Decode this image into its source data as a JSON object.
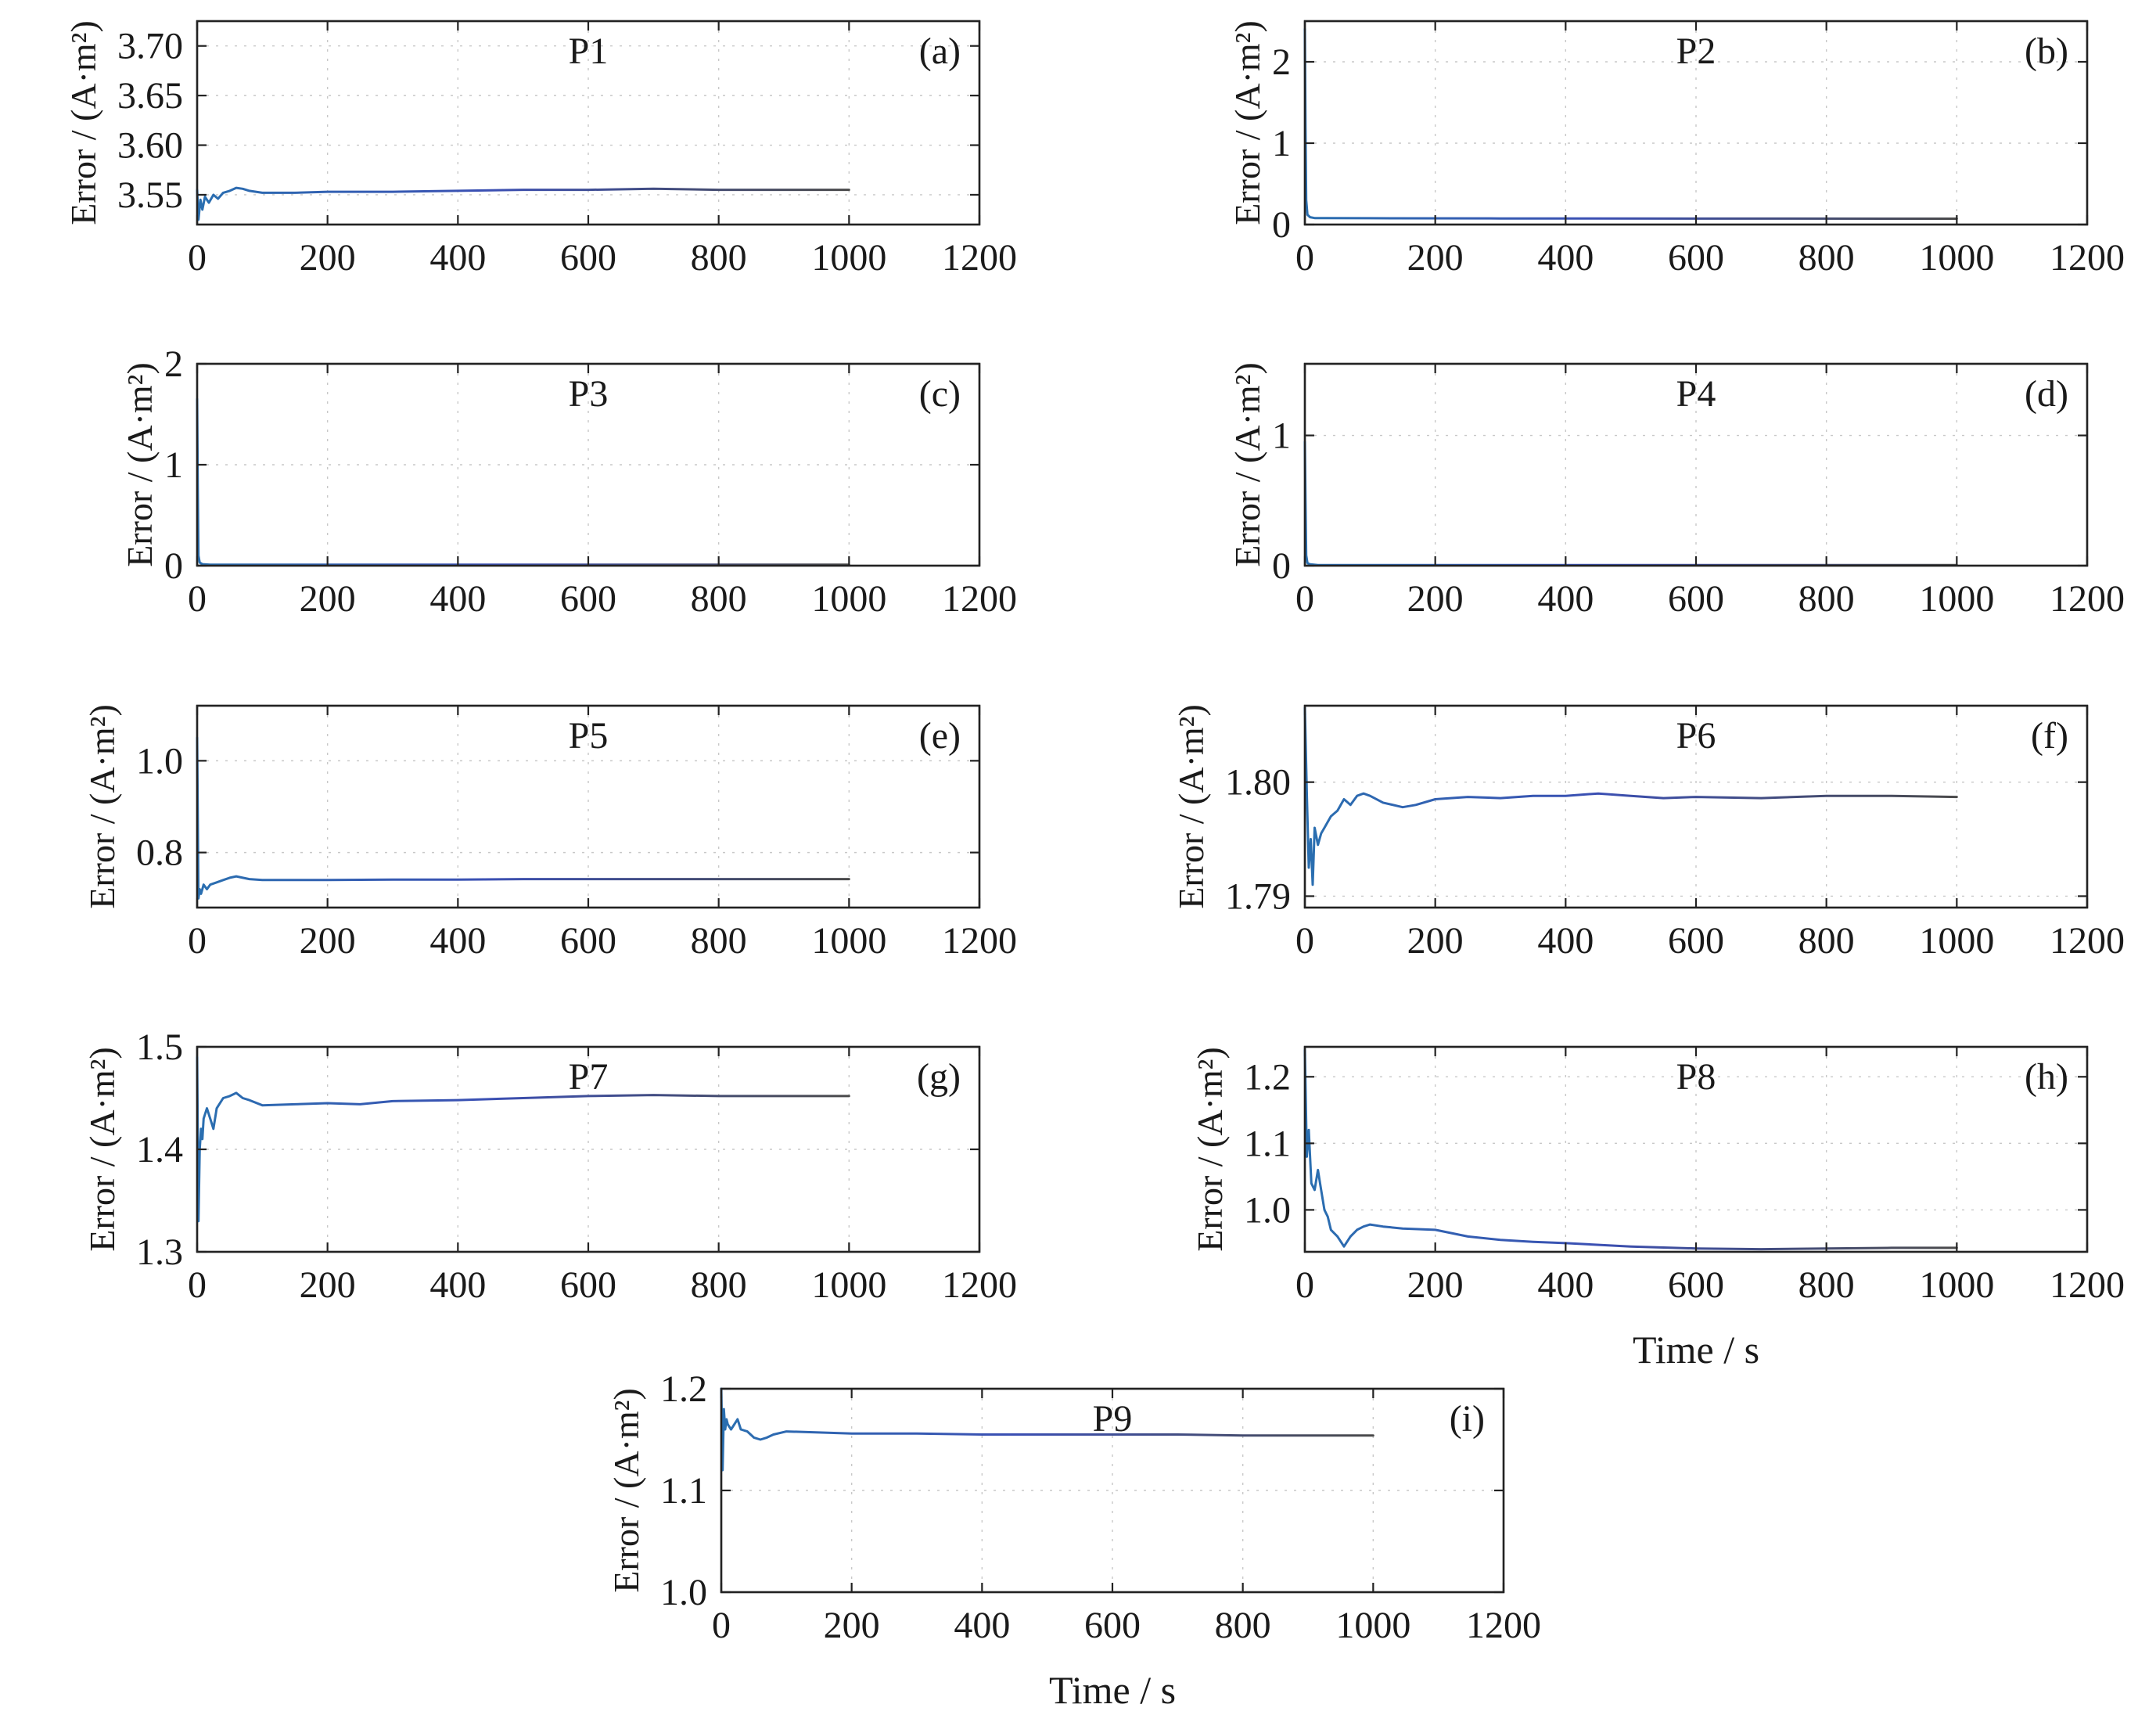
{
  "chart_data": [
    {
      "id": "a",
      "type": "line",
      "title": "P1",
      "tag": "(a)",
      "xlabel": "",
      "ylabel": "Error / (A·m²)",
      "xlim": [
        0,
        1200
      ],
      "ylim": [
        3.52,
        3.725
      ],
      "xticks": [
        0,
        200,
        400,
        600,
        800,
        1000,
        1200
      ],
      "yticks": [
        3.55,
        3.6,
        3.65,
        3.7
      ],
      "yticklabels": [
        "3.55",
        "3.60",
        "3.65",
        "3.70"
      ],
      "grid": true,
      "series": [
        {
          "x": [
            0,
            2,
            5,
            8,
            12,
            18,
            25,
            32,
            40,
            50,
            60,
            70,
            80,
            100,
            150,
            200,
            300,
            400,
            500,
            600,
            700,
            800,
            900,
            1000
          ],
          "y": [
            3.555,
            3.525,
            3.545,
            3.535,
            3.548,
            3.542,
            3.55,
            3.546,
            3.552,
            3.554,
            3.557,
            3.556,
            3.554,
            3.552,
            3.552,
            3.553,
            3.553,
            3.554,
            3.555,
            3.555,
            3.556,
            3.555,
            3.555,
            3.555
          ]
        }
      ]
    },
    {
      "id": "b",
      "type": "line",
      "title": "P2",
      "tag": "(b)",
      "xlabel": "",
      "ylabel": "Error / (A·m²)",
      "xlim": [
        0,
        1200
      ],
      "ylim": [
        0,
        2.5
      ],
      "xticks": [
        0,
        200,
        400,
        600,
        800,
        1000,
        1200
      ],
      "yticks": [
        0,
        1,
        2
      ],
      "yticklabels": [
        "0",
        "1",
        "2"
      ],
      "grid": true,
      "series": [
        {
          "x": [
            0,
            1,
            2,
            4,
            8,
            15,
            30,
            100,
            300,
            600,
            1000
          ],
          "y": [
            2.4,
            1.2,
            0.3,
            0.12,
            0.09,
            0.08,
            0.08,
            0.078,
            0.075,
            0.073,
            0.072
          ]
        }
      ]
    },
    {
      "id": "c",
      "type": "line",
      "title": "P3",
      "tag": "(c)",
      "xlabel": "",
      "ylabel": "Error / (A·m²)",
      "xlim": [
        0,
        1200
      ],
      "ylim": [
        0,
        2
      ],
      "xticks": [
        0,
        200,
        400,
        600,
        800,
        1000,
        1200
      ],
      "yticks": [
        0,
        1,
        2
      ],
      "yticklabels": [
        "0",
        "1",
        "2"
      ],
      "grid": true,
      "series": [
        {
          "x": [
            0,
            1,
            2,
            4,
            8,
            20,
            100,
            400,
            1000
          ],
          "y": [
            1.65,
            0.8,
            0.1,
            0.03,
            0.015,
            0.01,
            0.01,
            0.01,
            0.01
          ]
        }
      ]
    },
    {
      "id": "d",
      "type": "line",
      "title": "P4",
      "tag": "(d)",
      "xlabel": "",
      "ylabel": "Error / (A·m²)",
      "xlim": [
        0,
        1200
      ],
      "ylim": [
        0,
        1.55
      ],
      "xticks": [
        0,
        200,
        400,
        600,
        800,
        1000,
        1200
      ],
      "yticks": [
        0,
        1
      ],
      "yticklabels": [
        "0",
        "1"
      ],
      "grid": true,
      "series": [
        {
          "x": [
            0,
            1,
            2,
            4,
            8,
            20,
            100,
            400,
            1000
          ],
          "y": [
            0.95,
            0.5,
            0.08,
            0.02,
            0.01,
            0.005,
            0.005,
            0.005,
            0.005
          ]
        }
      ]
    },
    {
      "id": "e",
      "type": "line",
      "title": "P5",
      "tag": "(e)",
      "xlabel": "",
      "ylabel": "Error / (A·m²)",
      "xlim": [
        0,
        1200
      ],
      "ylim": [
        0.68,
        1.12
      ],
      "xticks": [
        0,
        200,
        400,
        600,
        800,
        1000,
        1200
      ],
      "yticks": [
        0.8,
        1.0
      ],
      "yticklabels": [
        "0.8",
        "1.0"
      ],
      "grid": true,
      "series": [
        {
          "x": [
            0,
            2,
            4,
            6,
            10,
            15,
            20,
            30,
            40,
            50,
            60,
            70,
            80,
            100,
            150,
            200,
            300,
            400,
            500,
            600,
            700,
            800,
            900,
            1000
          ],
          "y": [
            1.05,
            0.7,
            0.72,
            0.71,
            0.73,
            0.72,
            0.73,
            0.735,
            0.74,
            0.745,
            0.748,
            0.745,
            0.742,
            0.74,
            0.74,
            0.74,
            0.741,
            0.741,
            0.742,
            0.742,
            0.742,
            0.742,
            0.742,
            0.742
          ]
        }
      ]
    },
    {
      "id": "f",
      "type": "line",
      "title": "P6",
      "tag": "(f)",
      "xlabel": "",
      "ylabel": "Error / (A·m²)",
      "xlim": [
        0,
        1200
      ],
      "ylim": [
        1.789,
        1.8067
      ],
      "xticks": [
        0,
        200,
        400,
        600,
        800,
        1000,
        1200
      ],
      "yticks": [
        1.79,
        1.8
      ],
      "yticklabels": [
        "1.79",
        "1.80"
      ],
      "grid": true,
      "series": [
        {
          "x": [
            0,
            3,
            6,
            9,
            12,
            15,
            20,
            25,
            30,
            40,
            50,
            60,
            70,
            80,
            90,
            100,
            120,
            150,
            170,
            200,
            250,
            300,
            350,
            400,
            450,
            500,
            550,
            600,
            700,
            800,
            900,
            1000
          ],
          "y": [
            1.8065,
            1.799,
            1.7925,
            1.795,
            1.791,
            1.796,
            1.7945,
            1.7955,
            1.796,
            1.797,
            1.7975,
            1.7985,
            1.798,
            1.7988,
            1.799,
            1.7988,
            1.7982,
            1.7978,
            1.798,
            1.7985,
            1.7987,
            1.7986,
            1.7988,
            1.7988,
            1.799,
            1.7988,
            1.7986,
            1.7987,
            1.7986,
            1.7988,
            1.7988,
            1.7987
          ]
        }
      ]
    },
    {
      "id": "g",
      "type": "line",
      "title": "P7",
      "tag": "(g)",
      "xlabel": "",
      "ylabel": "Error / (A·m²)",
      "xlim": [
        0,
        1200
      ],
      "ylim": [
        1.3,
        1.5
      ],
      "xticks": [
        0,
        200,
        400,
        600,
        800,
        1000,
        1200
      ],
      "yticks": [
        1.3,
        1.4,
        1.5
      ],
      "yticklabels": [
        "1.3",
        "1.4",
        "1.5"
      ],
      "grid": true,
      "series": [
        {
          "x": [
            0,
            2,
            4,
            6,
            8,
            10,
            15,
            20,
            25,
            30,
            40,
            50,
            60,
            70,
            80,
            100,
            150,
            200,
            250,
            300,
            400,
            500,
            600,
            700,
            800,
            900,
            1000
          ],
          "y": [
            1.49,
            1.33,
            1.4,
            1.42,
            1.41,
            1.43,
            1.44,
            1.43,
            1.42,
            1.44,
            1.45,
            1.452,
            1.455,
            1.45,
            1.448,
            1.443,
            1.444,
            1.445,
            1.444,
            1.447,
            1.448,
            1.45,
            1.452,
            1.453,
            1.452,
            1.452,
            1.452
          ]
        }
      ]
    },
    {
      "id": "h",
      "type": "line",
      "title": "P8",
      "tag": "(h)",
      "xlabel": "Time / s",
      "ylabel": "Error / (A·m²)",
      "xlim": [
        0,
        1200
      ],
      "ylim": [
        0.937,
        1.245
      ],
      "xticks": [
        0,
        200,
        400,
        600,
        800,
        1000,
        1200
      ],
      "yticks": [
        1.0,
        1.1,
        1.2
      ],
      "yticklabels": [
        "1.0",
        "1.1",
        "1.2"
      ],
      "grid": true,
      "series": [
        {
          "x": [
            0,
            3,
            6,
            10,
            15,
            20,
            25,
            30,
            35,
            40,
            50,
            60,
            70,
            80,
            90,
            100,
            120,
            150,
            200,
            250,
            300,
            350,
            400,
            500,
            600,
            700,
            800,
            900,
            1000
          ],
          "y": [
            1.24,
            1.08,
            1.12,
            1.04,
            1.03,
            1.06,
            1.03,
            1.0,
            0.99,
            0.97,
            0.96,
            0.945,
            0.96,
            0.97,
            0.975,
            0.978,
            0.975,
            0.972,
            0.97,
            0.96,
            0.955,
            0.952,
            0.95,
            0.945,
            0.942,
            0.941,
            0.942,
            0.943,
            0.943
          ]
        }
      ]
    },
    {
      "id": "i",
      "type": "line",
      "title": "P9",
      "tag": "(i)",
      "xlabel": "Time / s",
      "ylabel": "Error / (A·m²)",
      "xlim": [
        0,
        1200
      ],
      "ylim": [
        1.0,
        1.2
      ],
      "xticks": [
        0,
        200,
        400,
        600,
        800,
        1000,
        1200
      ],
      "yticks": [
        1.0,
        1.1,
        1.2
      ],
      "yticklabels": [
        "1.0",
        "1.1",
        "1.2"
      ],
      "grid": true,
      "series": [
        {
          "x": [
            0,
            2,
            4,
            6,
            8,
            10,
            15,
            20,
            25,
            30,
            40,
            50,
            60,
            70,
            80,
            100,
            150,
            200,
            300,
            400,
            500,
            600,
            700,
            800,
            900,
            1000
          ],
          "y": [
            1.2,
            1.12,
            1.18,
            1.16,
            1.17,
            1.165,
            1.16,
            1.165,
            1.17,
            1.16,
            1.158,
            1.152,
            1.15,
            1.152,
            1.155,
            1.158,
            1.157,
            1.156,
            1.156,
            1.155,
            1.155,
            1.155,
            1.155,
            1.154,
            1.154,
            1.154
          ]
        }
      ]
    }
  ]
}
